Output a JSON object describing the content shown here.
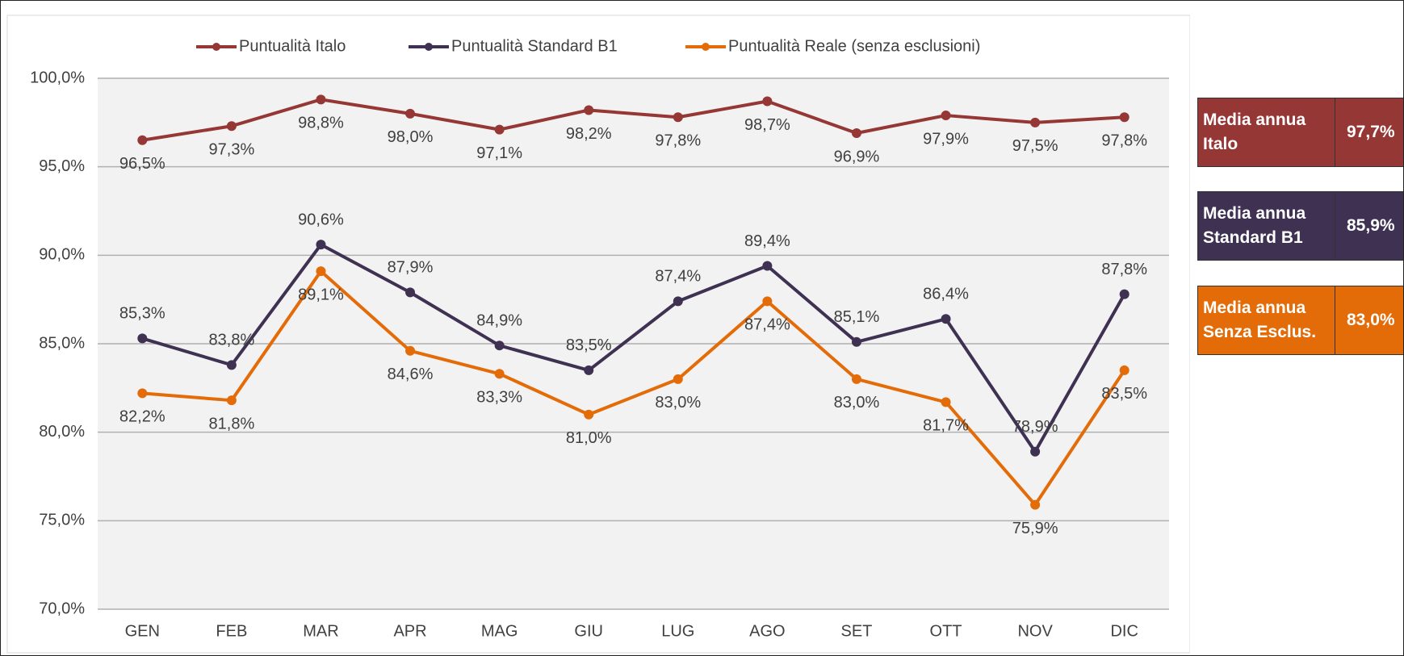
{
  "chart_data": {
    "type": "line",
    "categories": [
      "GEN",
      "FEB",
      "MAR",
      "APR",
      "MAG",
      "GIU",
      "LUG",
      "AGO",
      "SET",
      "OTT",
      "NOV",
      "DIC"
    ],
    "series": [
      {
        "name": "Puntualità Italo",
        "color": "#953735",
        "values": [
          96.5,
          97.3,
          98.8,
          98.0,
          97.1,
          98.2,
          97.8,
          98.7,
          96.9,
          97.9,
          97.5,
          97.8
        ],
        "value_labels": [
          "96,5%",
          "97,3%",
          "98,8%",
          "98,0%",
          "97,1%",
          "98,2%",
          "97,8%",
          "98,7%",
          "96,9%",
          "97,9%",
          "97,5%",
          "97,8%"
        ]
      },
      {
        "name": "Puntualità Standard B1",
        "color": "#3f3151",
        "values": [
          85.3,
          83.8,
          90.6,
          87.9,
          84.9,
          83.5,
          87.4,
          89.4,
          85.1,
          86.4,
          78.9,
          87.8
        ],
        "value_labels": [
          "85,3%",
          "83,8%",
          "90,6%",
          "87,9%",
          "84,9%",
          "83,5%",
          "87,4%",
          "89,4%",
          "85,1%",
          "86,4%",
          "78,9%",
          "87,8%"
        ]
      },
      {
        "name": "Puntualità Reale (senza esclusioni)",
        "color": "#e36c09",
        "values": [
          82.2,
          81.8,
          89.1,
          84.6,
          83.3,
          81.0,
          83.0,
          87.4,
          83.0,
          81.7,
          75.9,
          83.5
        ],
        "value_labels": [
          "82,2%",
          "81,8%",
          "89,1%",
          "84,6%",
          "83,3%",
          "81,0%",
          "83,0%",
          "87,4%",
          "83,0%",
          "81,7%",
          "75,9%",
          "83,5%"
        ]
      }
    ],
    "ylim": [
      70,
      100
    ],
    "yticks": [
      {
        "value": 70,
        "label": "70,0%"
      },
      {
        "value": 75,
        "label": "75,0%"
      },
      {
        "value": 80,
        "label": "80,0%"
      },
      {
        "value": 85,
        "label": "85,0%"
      },
      {
        "value": 90,
        "label": "90,0%"
      },
      {
        "value": 95,
        "label": "95,0%"
      },
      {
        "value": 100,
        "label": "100,0%"
      }
    ],
    "grid": true,
    "legend": "top"
  },
  "summary": [
    {
      "label": "Media annua Italo",
      "value": "97,7%",
      "color": "#953735"
    },
    {
      "label": "Media annua Standard B1",
      "value": "85,9%",
      "color": "#3f3151"
    },
    {
      "label": "Media annua Senza Esclus.",
      "value": "83,0%",
      "color": "#e36c09"
    }
  ]
}
